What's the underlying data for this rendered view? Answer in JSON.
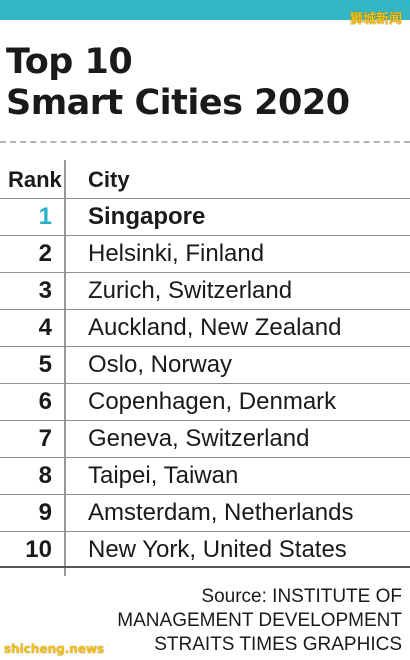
{
  "header": {
    "watermark_top": "狮城新闻",
    "title_line1": "Top 10",
    "title_line2": "Smart Cities 2020"
  },
  "table": {
    "columns": [
      "Rank",
      "City"
    ],
    "rows": [
      {
        "rank": "1",
        "city": "Singapore"
      },
      {
        "rank": "2",
        "city": "Helsinki, Finland"
      },
      {
        "rank": "3",
        "city": "Zurich, Switzerland"
      },
      {
        "rank": "4",
        "city": "Auckland, New Zealand"
      },
      {
        "rank": "5",
        "city": "Oslo, Norway"
      },
      {
        "rank": "6",
        "city": "Copenhagen, Denmark"
      },
      {
        "rank": "7",
        "city": "Geneva, Switzerland"
      },
      {
        "rank": "8",
        "city": "Taipei, Taiwan"
      },
      {
        "rank": "9",
        "city": "Amsterdam, Netherlands"
      },
      {
        "rank": "10",
        "city": "New York, United States"
      }
    ]
  },
  "footer": {
    "source_line1": "Source: INSTITUTE OF",
    "source_line2": "MANAGEMENT DEVELOPMENT",
    "source_line3": "STRAITS TIMES GRAPHICS",
    "watermark_bottom": "shicheng.news"
  },
  "colors": {
    "accent": "#34b7c4",
    "highlight_rank": "#2ab0c8",
    "watermark": "#f3c21a"
  }
}
